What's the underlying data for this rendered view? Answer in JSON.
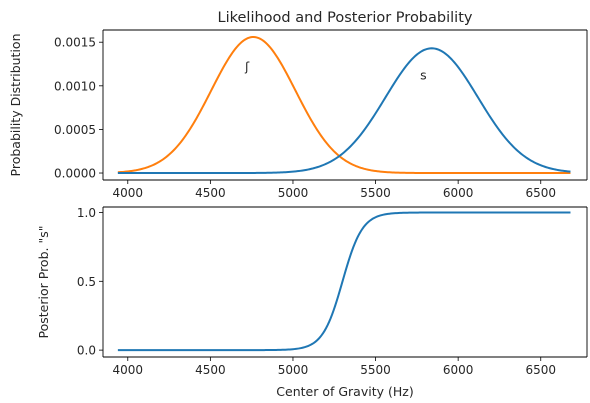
{
  "chart_data": [
    {
      "type": "line",
      "title": "Likelihood and Posterior Probability",
      "xlabel": "",
      "ylabel": "Probability Distribution",
      "xlim": [
        3850,
        6780
      ],
      "ylim": [
        -8e-05,
        0.00164
      ],
      "xticks": [
        4000,
        4500,
        5000,
        5500,
        6000,
        6500
      ],
      "yticks": [
        {
          "value": 0,
          "label": "0.0000"
        },
        {
          "value": 0.0005,
          "label": "0.0005"
        },
        {
          "value": 0.001,
          "label": "0.0010"
        },
        {
          "value": 0.0015,
          "label": "0.0015"
        }
      ],
      "series": [
        {
          "name": "",
          "color": "#ff7f0e",
          "kind": "gaussian",
          "mean": 4760,
          "sd": 255,
          "peak": 0.00156,
          "x_range": [
            3940,
            6680
          ]
        },
        {
          "name": "",
          "color": "#1f77b4",
          "kind": "gaussian",
          "mean": 5840,
          "sd": 280,
          "peak": 0.00143,
          "x_range": [
            3940,
            6680
          ]
        }
      ],
      "annotations": [
        {
          "text": "ʃ",
          "x": 4710,
          "y": 0.00117
        },
        {
          "text": "s",
          "x": 5770,
          "y": 0.00107
        }
      ],
      "grid": false
    },
    {
      "type": "line",
      "title": "",
      "xlabel": "Center of Gravity (Hz)",
      "ylabel": "Posterior Prob.  \"s\"",
      "xlim": [
        3850,
        6780
      ],
      "ylim": [
        -0.05,
        1.04
      ],
      "xticks": [
        4000,
        4500,
        5000,
        5500,
        6000,
        6500
      ],
      "yticks": [
        {
          "value": 0,
          "label": "0.0"
        },
        {
          "value": 0.5,
          "label": "0.5"
        },
        {
          "value": 1.0,
          "label": "1.0"
        }
      ],
      "series": [
        {
          "name": "",
          "color": "#1f77b4",
          "kind": "logistic",
          "midpoint": 5300,
          "scale": 60,
          "x_range": [
            3940,
            6680
          ]
        }
      ],
      "grid": false
    }
  ]
}
